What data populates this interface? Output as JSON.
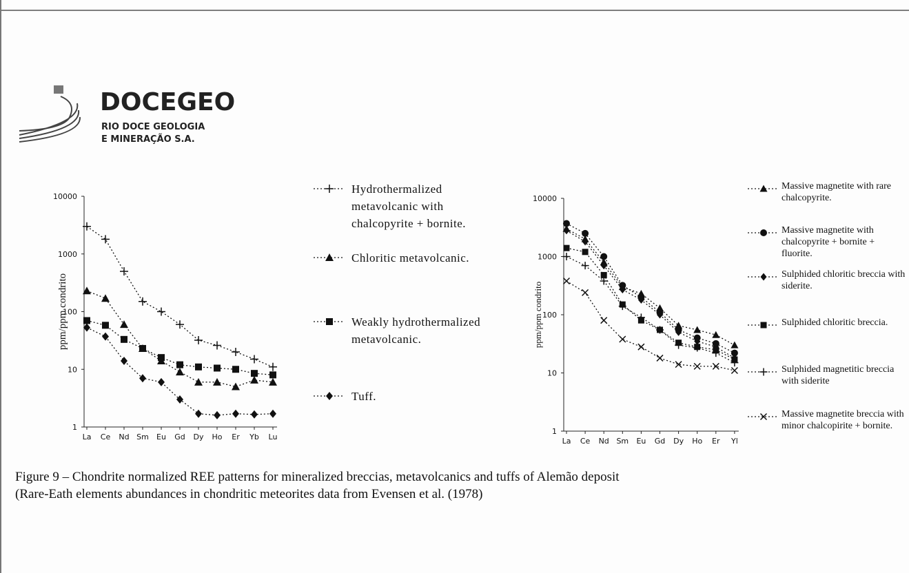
{
  "header": {
    "logo": "DOCEGEO",
    "company_line1": "RIO DOCE GEOLOGIA",
    "company_line2": "E MINERAÇÃO S.A."
  },
  "caption": {
    "line1": "Figure 9 – Chondrite normalized REE patterns for mineralized breccias, metavolcanics and tuffs of Alemão deposit",
    "line2": "(Rare-Eath elements abundances in chondritic meteorites data  from Evensen et al. (1978)"
  },
  "chart_data": [
    {
      "type": "line",
      "y_label": "ppm/ppm condrito",
      "log_y": true,
      "categories": [
        "La",
        "Ce",
        "Nd",
        "Sm",
        "Eu",
        "Gd",
        "Dy",
        "Ho",
        "Er",
        "Yb",
        "Lu"
      ],
      "ylim": [
        1,
        10000
      ],
      "yticks": [
        1,
        10,
        100,
        1000,
        10000
      ],
      "series": [
        {
          "name": "Hydrothermalized metavolcanic with chalcopyrite + bornite.",
          "color": "#111111",
          "marker": "plus",
          "values": [
            3000,
            1800,
            500,
            150,
            100,
            60,
            32,
            26,
            20,
            15,
            11
          ]
        },
        {
          "name": "Chloritic metavolcanic.",
          "color": "#111111",
          "marker": "triangle",
          "values": [
            230,
            170,
            60,
            23,
            14,
            9,
            6,
            6,
            5,
            6.5,
            6
          ]
        },
        {
          "name": "Weakly hydrothermalized metavolcanic.",
          "color": "#111111",
          "marker": "square",
          "values": [
            70,
            58,
            33,
            23,
            16,
            12,
            11,
            10.5,
            10,
            8.5,
            8
          ]
        },
        {
          "name": "Tuff.",
          "color": "#111111",
          "marker": "diamond",
          "values": [
            53,
            37,
            14,
            7,
            6,
            3,
            1.7,
            1.6,
            1.7,
            1.65,
            1.7
          ]
        }
      ]
    },
    {
      "type": "line",
      "y_label": "ppm/ppm condrito",
      "log_y": true,
      "categories": [
        "La",
        "Ce",
        "Nd",
        "Sm",
        "Eu",
        "Gd",
        "Dy",
        "Ho",
        "Er",
        "Yl"
      ],
      "ylim": [
        1,
        10000
      ],
      "yticks": [
        1,
        10,
        100,
        1000,
        10000
      ],
      "series": [
        {
          "name": "Massive magnetite with rare chalcopyrite.",
          "color": "#111111",
          "marker": "triangle",
          "values": [
            3000,
            2000,
            800,
            300,
            230,
            130,
            65,
            55,
            45,
            30
          ]
        },
        {
          "name": "Massive magnetite with chalcopyrite + bornite + fluorite.",
          "color": "#111111",
          "marker": "circle",
          "values": [
            3700,
            2500,
            1000,
            320,
            200,
            110,
            55,
            40,
            32,
            22
          ]
        },
        {
          "name": "Sulphided chloritic breccia with siderite.",
          "color": "#111111",
          "marker": "diamond",
          "values": [
            2800,
            1800,
            700,
            270,
            180,
            100,
            50,
            35,
            28,
            18
          ]
        },
        {
          "name": "Sulphided chloritic breccia.",
          "color": "#111111",
          "marker": "square",
          "values": [
            1400,
            1200,
            480,
            150,
            80,
            55,
            33,
            28,
            25,
            17
          ]
        },
        {
          "name": "Sulphided magnetitic breccia with siderite",
          "color": "#111111",
          "marker": "plus",
          "values": [
            1000,
            700,
            380,
            140,
            90,
            55,
            30,
            27,
            22,
            15
          ]
        },
        {
          "name": "Massive magnetite breccia with minor chalcopirite + bornite.",
          "color": "#111111",
          "marker": "cross",
          "values": [
            380,
            240,
            80,
            38,
            28,
            18,
            14,
            13,
            13,
            11
          ]
        }
      ]
    }
  ]
}
